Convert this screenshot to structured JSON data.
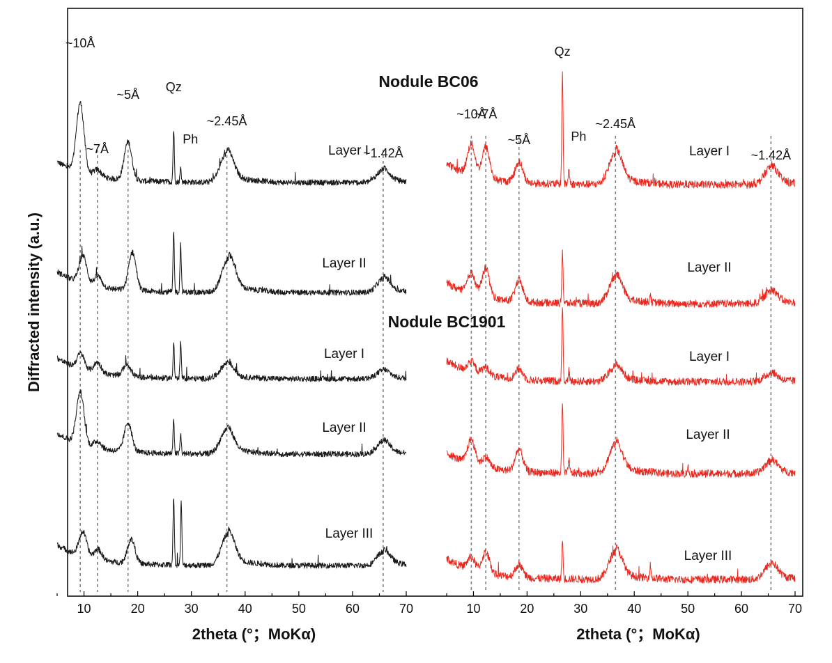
{
  "chart_data": {
    "type": "line",
    "ylabel": "Diffracted intensity (a.u.)",
    "ylabel_units": "arbitrary, patterns stacked with vertical offsets",
    "colors": {
      "left_panel": "#1a1a1a",
      "right_panel": "#e8281e",
      "dashed": "#808080"
    },
    "titles": [
      {
        "id": "bc06",
        "text": "Nodule BC06"
      },
      {
        "id": "bc1901",
        "text": "Nodule BC1901"
      }
    ],
    "panels": [
      {
        "id": "left",
        "xlabel": "2theta (°；MoKα)",
        "xlim": [
          5,
          70
        ],
        "xticks": [
          10,
          20,
          30,
          40,
          50,
          60,
          70
        ],
        "reference_lines_2theta": [
          9.3,
          12.5,
          18.2,
          36.6,
          65.7
        ],
        "peak_labels": [
          {
            "text": "~10Å",
            "x": 9.3
          },
          {
            "text": "~7Å",
            "x": 12.5
          },
          {
            "text": "~5Å",
            "x": 18.2
          },
          {
            "text": "Qz",
            "x": 26.7
          },
          {
            "text": "Ph",
            "x": 28.0
          },
          {
            "text": "~2.45Å",
            "x": 36.6
          },
          {
            "text": "~1.42Å",
            "x": 65.7
          }
        ],
        "series": [
          {
            "name": "Layer I",
            "nodule": "BC06",
            "peaks": [
              [
                9.3,
                100
              ],
              [
                12.5,
                10
              ],
              [
                18.2,
                55
              ],
              [
                26.7,
                75
              ],
              [
                28.0,
                20
              ],
              [
                36.6,
                42
              ],
              [
                65.7,
                18
              ]
            ]
          },
          {
            "name": "Layer II",
            "nodule": "BC06",
            "peaks": [
              [
                9.8,
                40
              ],
              [
                12.6,
                15
              ],
              [
                19.0,
                55
              ],
              [
                26.7,
                85
              ],
              [
                28.0,
                70
              ],
              [
                36.9,
                48
              ],
              [
                65.8,
                20
              ]
            ]
          },
          {
            "name": "Layer I",
            "nodule": "BC1901",
            "peaks": [
              [
                9.4,
                22
              ],
              [
                12.5,
                15
              ],
              [
                18.0,
                18
              ],
              [
                26.7,
                52
              ],
              [
                28.0,
                52
              ],
              [
                36.6,
                22
              ],
              [
                65.7,
                12
              ]
            ]
          },
          {
            "name": "Layer II",
            "nodule": "BC1901",
            "peaks": [
              [
                9.3,
                75
              ],
              [
                12.5,
                10
              ],
              [
                18.2,
                42
              ],
              [
                26.7,
                48
              ],
              [
                28.0,
                28
              ],
              [
                36.6,
                35
              ],
              [
                65.7,
                18
              ]
            ]
          },
          {
            "name": "Layer III",
            "nodule": "BC1901",
            "peaks": [
              [
                9.8,
                35
              ],
              [
                12.6,
                15
              ],
              [
                18.8,
                35
              ],
              [
                26.7,
                100
              ],
              [
                28.1,
                90
              ],
              [
                36.8,
                45
              ],
              [
                65.8,
                20
              ]
            ]
          }
        ]
      },
      {
        "id": "right",
        "xlabel": "2theta (°；MoKα)",
        "xlim": [
          5,
          70
        ],
        "xticks": [
          10,
          20,
          30,
          40,
          50,
          60,
          70
        ],
        "reference_lines_2theta": [
          9.6,
          12.3,
          18.5,
          36.5,
          65.5
        ],
        "peak_labels": [
          {
            "text": "~10Å",
            "x": 9.6
          },
          {
            "text": "~7Å",
            "x": 12.3
          },
          {
            "text": "~5Å",
            "x": 18.5
          },
          {
            "text": "Qz",
            "x": 26.6
          },
          {
            "text": "Ph",
            "x": 27.8
          },
          {
            "text": "~2.45Å",
            "x": 36.5
          },
          {
            "text": "~1.42Å",
            "x": 65.5
          }
        ],
        "series": [
          {
            "name": "Layer I",
            "nodule": "BC06",
            "peaks": [
              [
                9.6,
                45
              ],
              [
                12.3,
                45
              ],
              [
                18.5,
                30
              ],
              [
                26.6,
                160
              ],
              [
                27.8,
                22
              ],
              [
                36.5,
                45
              ],
              [
                65.5,
                25
              ]
            ]
          },
          {
            "name": "Layer II",
            "nodule": "BC06",
            "peaks": [
              [
                9.6,
                30
              ],
              [
                12.3,
                42
              ],
              [
                18.5,
                30
              ],
              [
                26.6,
                75
              ],
              [
                36.5,
                38
              ],
              [
                43,
                12
              ],
              [
                65.5,
                18
              ]
            ]
          },
          {
            "name": "Layer I",
            "nodule": "BC1901",
            "peaks": [
              [
                9.6,
                15
              ],
              [
                12.3,
                12
              ],
              [
                18.5,
                15
              ],
              [
                26.6,
                110
              ],
              [
                27.8,
                15
              ],
              [
                36.5,
                22
              ],
              [
                65.5,
                12
              ]
            ]
          },
          {
            "name": "Layer II",
            "nodule": "BC1901",
            "peaks": [
              [
                9.6,
                35
              ],
              [
                12.3,
                15
              ],
              [
                18.5,
                32
              ],
              [
                26.6,
                100
              ],
              [
                27.8,
                20
              ],
              [
                36.5,
                42
              ],
              [
                50,
                10
              ],
              [
                65.5,
                18
              ]
            ]
          },
          {
            "name": "Layer III",
            "nodule": "BC1901",
            "peaks": [
              [
                9.6,
                18
              ],
              [
                12.3,
                30
              ],
              [
                18.5,
                18
              ],
              [
                26.6,
                55
              ],
              [
                36.5,
                40
              ],
              [
                43,
                18
              ],
              [
                65.5,
                22
              ]
            ]
          }
        ]
      }
    ]
  }
}
